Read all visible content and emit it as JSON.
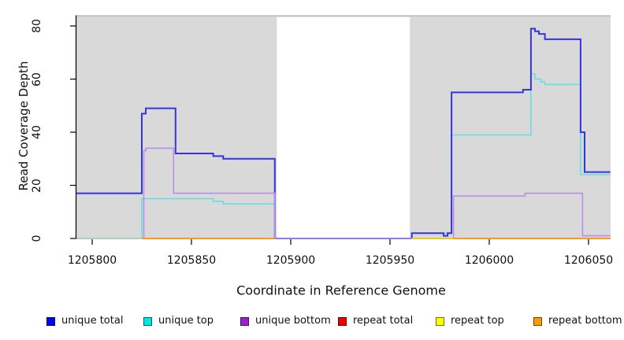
{
  "chart_data": {
    "type": "line",
    "step": true,
    "title": "",
    "xlabel": "Coordinate in Reference Genome",
    "ylabel": "Read Coverage Depth",
    "xlim": [
      1205792,
      1206061
    ],
    "ylim": [
      0,
      84
    ],
    "x_ticks": [
      1205800,
      1205850,
      1205900,
      1205950,
      1206000,
      1206050
    ],
    "y_ticks": [
      0,
      20,
      40,
      60,
      80
    ],
    "grid": false,
    "legend_position": "bottom",
    "background": {
      "plot_fill": "#d9d9d9",
      "plot_top_border": "#b2b2b2",
      "white_gap_x": [
        1205893,
        1205960
      ]
    },
    "series": [
      {
        "name": "unique total",
        "legend_color": "#0000ee",
        "line_color": "#3434e2",
        "line_width": 2,
        "z": 2,
        "paths": [
          [
            [
              1205792,
              17
            ],
            [
              1205825,
              17
            ],
            [
              1205825,
              47
            ],
            [
              1205827,
              47
            ],
            [
              1205827,
              49
            ],
            [
              1205842,
              49
            ],
            [
              1205842,
              32
            ],
            [
              1205861,
              32
            ],
            [
              1205861,
              31
            ],
            [
              1205866,
              31
            ],
            [
              1205866,
              30
            ],
            [
              1205892,
              30
            ],
            [
              1205892,
              0
            ],
            [
              1205961,
              0
            ],
            [
              1205961,
              2
            ],
            [
              1205977,
              2
            ],
            [
              1205977,
              1
            ],
            [
              1205979,
              1
            ],
            [
              1205979,
              2
            ],
            [
              1205981,
              2
            ],
            [
              1205981,
              55
            ],
            [
              1206017,
              55
            ],
            [
              1206017,
              56
            ],
            [
              1206021,
              56
            ],
            [
              1206021,
              79
            ],
            [
              1206023,
              79
            ],
            [
              1206023,
              78
            ],
            [
              1206025,
              78
            ],
            [
              1206025,
              77
            ],
            [
              1206028,
              77
            ],
            [
              1206028,
              75
            ],
            [
              1206046,
              75
            ],
            [
              1206046,
              40
            ],
            [
              1206048,
              40
            ],
            [
              1206048,
              25
            ],
            [
              1206061,
              25
            ]
          ]
        ]
      },
      {
        "name": "unique top",
        "legend_color": "#00e5e5",
        "line_color": "#68dfdf",
        "line_width": 1.6,
        "z": 1,
        "paths": [
          [
            [
              1205792,
              0
            ],
            [
              1205825,
              0
            ],
            [
              1205825,
              15
            ],
            [
              1205861,
              15
            ],
            [
              1205861,
              14
            ],
            [
              1205866,
              14
            ],
            [
              1205866,
              13
            ],
            [
              1205892,
              13
            ],
            [
              1205892,
              0
            ],
            [
              1205961,
              0
            ],
            [
              1205961,
              2
            ],
            [
              1205981,
              2
            ],
            [
              1205981,
              39
            ],
            [
              1206021,
              39
            ],
            [
              1206021,
              62
            ],
            [
              1206023,
              62
            ],
            [
              1206023,
              60
            ],
            [
              1206026,
              60
            ],
            [
              1206026,
              59
            ],
            [
              1206028,
              59
            ],
            [
              1206028,
              58
            ],
            [
              1206046,
              58
            ],
            [
              1206046,
              24
            ],
            [
              1206061,
              24
            ]
          ]
        ]
      },
      {
        "name": "unique bottom",
        "legend_color": "#9b1fd4",
        "line_color": "#b78ee8",
        "line_width": 1.6,
        "z": 3,
        "paths": [
          [
            [
              1205792,
              0
            ],
            [
              1205826,
              0
            ],
            [
              1205826,
              33
            ],
            [
              1205827,
              33
            ],
            [
              1205827,
              34
            ],
            [
              1205841,
              34
            ],
            [
              1205841,
              17
            ],
            [
              1205892,
              17
            ],
            [
              1205892,
              0
            ],
            [
              1205982,
              0
            ],
            [
              1205982,
              16
            ],
            [
              1206018,
              16
            ],
            [
              1206018,
              17
            ],
            [
              1206047,
              17
            ],
            [
              1206047,
              1
            ],
            [
              1206061,
              1
            ]
          ]
        ]
      },
      {
        "name": "repeat total",
        "legend_color": "#ee0000",
        "line_color": "#e84040",
        "line_width": 1.4,
        "z": 4,
        "paths": [
          [
            [
              1205825,
              0
            ],
            [
              1205892,
              0
            ]
          ],
          [
            [
              1205961,
              0
            ],
            [
              1206061,
              0
            ]
          ]
        ]
      },
      {
        "name": "repeat top",
        "legend_color": "#ffff00",
        "line_color": "#e8e800",
        "line_width": 1.4,
        "z": 5,
        "paths": [
          [
            [
              1205825,
              0
            ],
            [
              1205892,
              0
            ]
          ],
          [
            [
              1205961,
              0
            ],
            [
              1206061,
              0
            ]
          ]
        ]
      },
      {
        "name": "repeat bottom",
        "legend_color": "#ff9900",
        "line_color": "#ff8c1a",
        "line_width": 1.6,
        "z": 7,
        "paths": [
          [
            [
              1205825,
              0
            ],
            [
              1205892,
              0
            ]
          ],
          [
            [
              1205982,
              0
            ],
            [
              1206061,
              0
            ]
          ]
        ]
      }
    ],
    "zero_overlap_segment": {
      "note": "overlapping series at depth 0 left of first step",
      "line_color": "#a8d8a8",
      "line_width": 1.6,
      "z": 6,
      "path": [
        [
          1205792,
          0
        ],
        [
          1205825,
          0
        ]
      ]
    }
  }
}
